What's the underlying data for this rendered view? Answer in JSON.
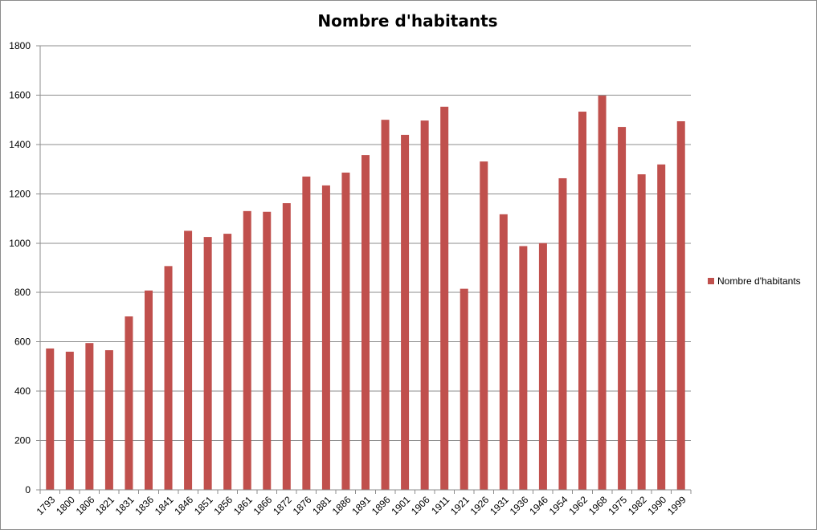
{
  "chart_data": {
    "type": "bar",
    "title": "Nombre d'habitants",
    "xlabel": "",
    "ylabel": "",
    "ylim": [
      0,
      1800
    ],
    "yticks": [
      "0",
      "200",
      "400",
      "600",
      "800",
      "1000",
      "1200",
      "1400",
      "1600",
      "1800"
    ],
    "grid": true,
    "legend_position": "right",
    "bar_color": "#c0504d",
    "categories": [
      "1793",
      "1800",
      "1806",
      "1821",
      "1831",
      "1836",
      "1841",
      "1846",
      "1851",
      "1856",
      "1861",
      "1866",
      "1872",
      "1876",
      "1881",
      "1886",
      "1891",
      "1896",
      "1901",
      "1906",
      "1911",
      "1921",
      "1926",
      "1931",
      "1936",
      "1946",
      "1954",
      "1962",
      "1968",
      "1975",
      "1982",
      "1990",
      "1999"
    ],
    "series": [
      {
        "name": "Nombre d'habitants",
        "values": [
          573,
          560,
          595,
          566,
          703,
          808,
          907,
          1050,
          1025,
          1038,
          1130,
          1127,
          1162,
          1270,
          1234,
          1286,
          1357,
          1500,
          1439,
          1497,
          1553,
          815,
          1331,
          1117,
          988,
          1000,
          1263,
          1533,
          1598,
          1471,
          1279,
          1319,
          1494
        ]
      }
    ]
  }
}
